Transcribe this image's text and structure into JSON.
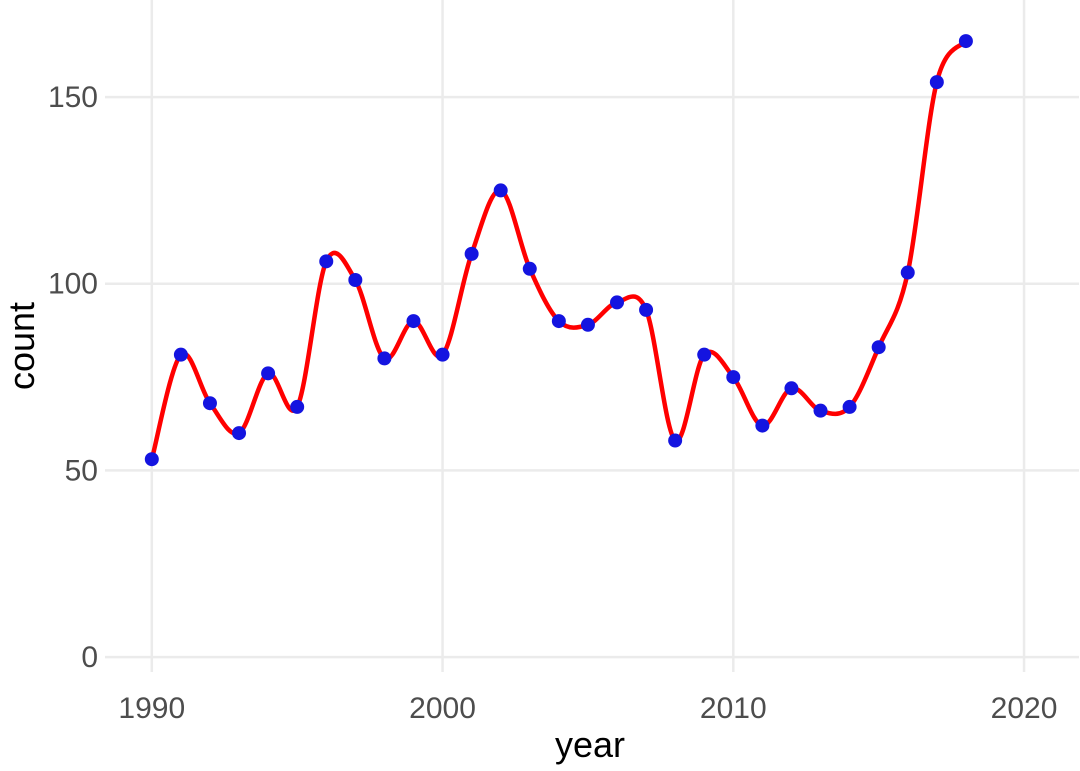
{
  "chart_data": {
    "type": "line",
    "xlabel": "year",
    "ylabel": "count",
    "x": [
      1990,
      1991,
      1992,
      1993,
      1994,
      1995,
      1996,
      1997,
      1998,
      1999,
      2000,
      2001,
      2002,
      2003,
      2004,
      2005,
      2006,
      2007,
      2008,
      2009,
      2010,
      2011,
      2012,
      2013,
      2014,
      2015,
      2016,
      2017,
      2018
    ],
    "values": [
      53,
      81,
      68,
      60,
      76,
      67,
      106,
      101,
      80,
      90,
      81,
      108,
      125,
      104,
      90,
      89,
      95,
      93,
      58,
      81,
      75,
      62,
      72,
      66,
      67,
      83,
      103,
      154,
      165
    ],
    "x_ticks": [
      1990,
      2000,
      2010,
      2020
    ],
    "y_ticks": [
      0,
      50,
      100,
      150
    ],
    "xlim": [
      1988.39,
      2021.89
    ],
    "ylim": [
      -4,
      176
    ],
    "grid": "major-only",
    "legend": "none",
    "smooth": true,
    "colors": {
      "line": "#ff0000",
      "point": "#1414e0",
      "grid": "#ebebeb",
      "tick_label": "#4d4d4d",
      "axis_title": "#000000",
      "background": "#ffffff"
    }
  }
}
